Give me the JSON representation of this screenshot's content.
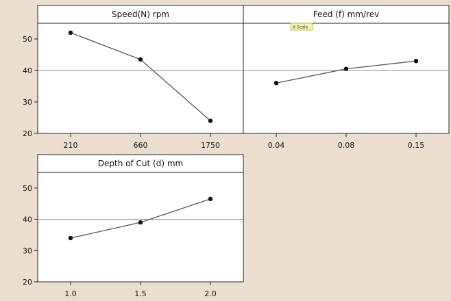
{
  "colors": {
    "background": "#eadfcf",
    "panel": "#ffffff",
    "line": "#555555",
    "marker": "#111111",
    "reference": "#888888",
    "tooltip_fill": "#f7f3b0",
    "tooltip_border": "#b8a94a"
  },
  "tooltip": {
    "text": "X Scale"
  },
  "chart_data": [
    {
      "type": "line",
      "title": "Speed(N) rpm",
      "categories": [
        "210",
        "660",
        "1750"
      ],
      "values": [
        52,
        43.5,
        24
      ],
      "ylim": [
        20,
        55
      ],
      "yticks": [
        20,
        30,
        40,
        50
      ],
      "reference_line": 40,
      "grid": false
    },
    {
      "type": "line",
      "title": "Feed (f) mm/rev",
      "categories": [
        "0.04",
        "0.08",
        "0.15"
      ],
      "values": [
        36,
        40.5,
        43
      ],
      "ylim": [
        20,
        55
      ],
      "yticks": [
        20,
        30,
        40,
        50
      ],
      "reference_line": 40,
      "grid": false
    },
    {
      "type": "line",
      "title": "Depth of Cut (d) mm",
      "categories": [
        "1.0",
        "1.5",
        "2.0"
      ],
      "values": [
        34,
        39,
        46.5
      ],
      "ylim": [
        20,
        55
      ],
      "yticks": [
        20,
        30,
        40,
        50
      ],
      "reference_line": 40,
      "grid": false
    }
  ]
}
